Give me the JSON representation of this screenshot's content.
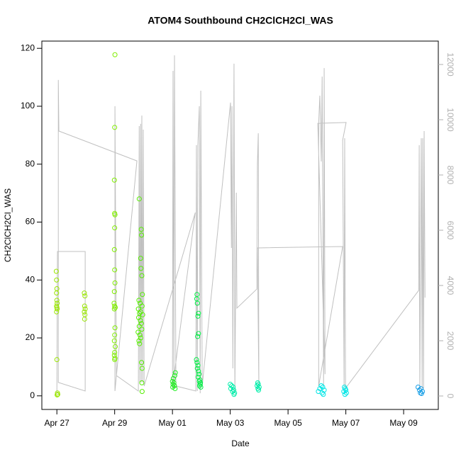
{
  "chart_data": {
    "type": "scatter",
    "title": "ATOM4 Southbound CH2ClCH2Cl_WAS",
    "xlabel": "Date",
    "ylabel": "CH2ClCH2Cl_WAS",
    "xlim": [
      -0.52,
      13.2
    ],
    "ylim": [
      -4.7,
      122.5
    ],
    "y2lim": [
      -487,
      12846
    ],
    "xticks": [
      {
        "value": 0,
        "label": "Apr 27"
      },
      {
        "value": 2,
        "label": "Apr 29"
      },
      {
        "value": 4,
        "label": "May 01"
      },
      {
        "value": 6,
        "label": "May 03"
      },
      {
        "value": 8,
        "label": "May 05"
      },
      {
        "value": 10,
        "label": "May 07"
      },
      {
        "value": 12,
        "label": "May 09"
      }
    ],
    "yticks": [
      0,
      20,
      40,
      60,
      80,
      100,
      120
    ],
    "y2ticks": [
      0,
      2000,
      4000,
      6000,
      8000,
      10000,
      12000
    ],
    "y2color": "#b0b0b0",
    "series": [
      {
        "color": "#99e600",
        "x": [
          -0.02,
          -0.01,
          0,
          -0.01,
          0,
          0.01,
          -0.01,
          0,
          0.01,
          -0.01,
          0,
          0.02,
          0.03,
          0.01,
          0.95,
          0.97,
          0.96,
          0.98,
          0.95,
          0.97,
          0.96
        ],
        "values": [
          43,
          40,
          37,
          35.5,
          33,
          32,
          31,
          30.5,
          30,
          29,
          12.5,
          1,
          0.5,
          0.3,
          35.5,
          34.5,
          31,
          30,
          29,
          28,
          26.5
        ]
      },
      {
        "color": "#80ee00",
        "x": [
          2.01,
          2.0,
          1.99,
          2.0,
          2.01,
          2.0,
          1.99,
          2.0,
          2.01,
          1.99,
          1.98,
          2.0,
          2.02,
          1.99,
          2.01,
          2.0,
          1.99,
          2.02,
          2.0,
          1.99,
          2.01,
          2.0
        ],
        "values": [
          117.8,
          92.7,
          74.5,
          63,
          62.5,
          58,
          50.5,
          43.5,
          39,
          36,
          32,
          31,
          30.5,
          30,
          23.5,
          21,
          19,
          17,
          15,
          14,
          13,
          12.5
        ]
      },
      {
        "color": "#55ee00",
        "x": [
          2.85,
          2.92,
          2.93,
          2.9,
          2.91,
          2.94,
          2.96,
          2.84,
          2.88,
          2.95,
          2.82,
          2.9,
          2.86,
          2.97,
          2.83,
          2.89,
          2.92,
          2.85,
          2.94,
          2.81,
          2.87,
          2.9,
          2.84,
          2.86,
          2.93,
          2.95,
          2.94,
          2.95
        ],
        "values": [
          68,
          57.5,
          55.5,
          47.5,
          44,
          41.5,
          35,
          33,
          32,
          31,
          30,
          29,
          28.5,
          28,
          27,
          26,
          25,
          24,
          23,
          22,
          21,
          20,
          19,
          18,
          11.5,
          9.5,
          4.5,
          1.5
        ]
      },
      {
        "color": "#22ee22",
        "x": [
          4.1,
          4.08,
          4.03,
          4.0,
          4.05,
          4.02,
          4.07,
          4.01,
          4.09
        ],
        "values": [
          8,
          7,
          6,
          5,
          4.5,
          4,
          3.5,
          3,
          2.5
        ]
      },
      {
        "color": "#00ee44",
        "x": [
          4.85,
          4.84,
          4.86,
          4.9,
          4.88,
          4.9,
          4.87,
          4.83,
          4.85,
          4.88,
          4.86,
          4.9,
          4.92,
          4.89,
          4.95,
          4.93,
          4.97,
          4.96,
          4.94,
          4.98
        ],
        "values": [
          35,
          33.5,
          32,
          28.5,
          27.5,
          21.5,
          20.5,
          12.5,
          11.5,
          10.5,
          9.5,
          8.5,
          7.5,
          6.5,
          5.5,
          5,
          4.5,
          4,
          3.5,
          3
        ]
      },
      {
        "color": "#00eeaa",
        "x": [
          6.0,
          6.05,
          6.1,
          6.02,
          6.12,
          6.08,
          6.15,
          6.13,
          6.95,
          6.97,
          6.93,
          7.0,
          6.96,
          6.98
        ],
        "values": [
          4,
          3.5,
          3,
          2.5,
          2,
          1.5,
          1,
          0.5,
          4.5,
          4,
          3.5,
          3,
          2.5,
          2
        ]
      },
      {
        "color": "#00e6e6",
        "x": [
          9.15,
          9.2,
          9.1,
          9.25,
          9.05,
          9.18,
          9.22,
          9.95,
          9.98,
          10.0,
          9.93,
          10.02,
          9.97
        ],
        "values": [
          3.5,
          3,
          2.5,
          2,
          1.5,
          1,
          0.5,
          3,
          2.5,
          2,
          1.5,
          1,
          0.5
        ]
      },
      {
        "color": "#1a9fe6",
        "x": [
          12.5,
          12.6,
          12.55,
          12.65,
          12.58,
          12.62
        ],
        "values": [
          3,
          2.5,
          2,
          1.5,
          1,
          0.8
        ]
      },
      {
        "type": "line",
        "axis": "y2",
        "color": "#c0c0c0",
        "x": [
          0,
          0.02,
          0.98,
          0.98,
          0.05,
          0.05,
          0.07,
          2.77,
          2.01,
          2.01,
          2.06,
          2.82,
          2.85,
          2.87,
          2.9,
          2.92,
          2.94,
          2.97,
          2.99,
          3.02,
          4.79,
          4.0,
          4.02,
          4.05,
          4.07,
          4.12,
          4.81,
          4.83,
          4.86,
          4.88,
          4.93,
          4.96,
          4.98,
          5.03,
          6.01,
          6.04,
          6.06,
          6.09,
          6.13,
          6.16,
          6.21,
          6.23,
          6.92,
          6.94,
          6.97,
          6.99,
          6.94,
          9.89,
          9.06,
          9.06,
          9.1,
          9.15,
          9.18,
          9.23,
          9.25,
          9.28,
          9.03,
          10.01,
          9.89,
          9.94,
          9.96,
          9.99,
          12.52,
          12.54,
          12.56,
          12.61,
          12.64,
          12.66,
          12.69,
          12.71,
          12.74
        ],
        "values": [
          80,
          5230,
          5230,
          180,
          490,
          11440,
          9590,
          8510,
          180,
          10490,
          740,
          180,
          9770,
          490,
          9850,
          490,
          10150,
          490,
          9640,
          360,
          6640,
          280,
          11770,
          280,
          12330,
          360,
          180,
          9080,
          180,
          9080,
          10490,
          100,
          11050,
          360,
          10620,
          5360,
          10490,
          1000,
          12030,
          100,
          7360,
          3180,
          3870,
          8380,
          9510,
          360,
          5360,
          5410,
          360,
          9870,
          10870,
          8490,
          11560,
          360,
          11870,
          790,
          9870,
          9900,
          9260,
          360,
          9330,
          280,
          3820,
          9080,
          280,
          9330,
          280,
          9330,
          280,
          9590,
          3560
        ]
      }
    ]
  }
}
